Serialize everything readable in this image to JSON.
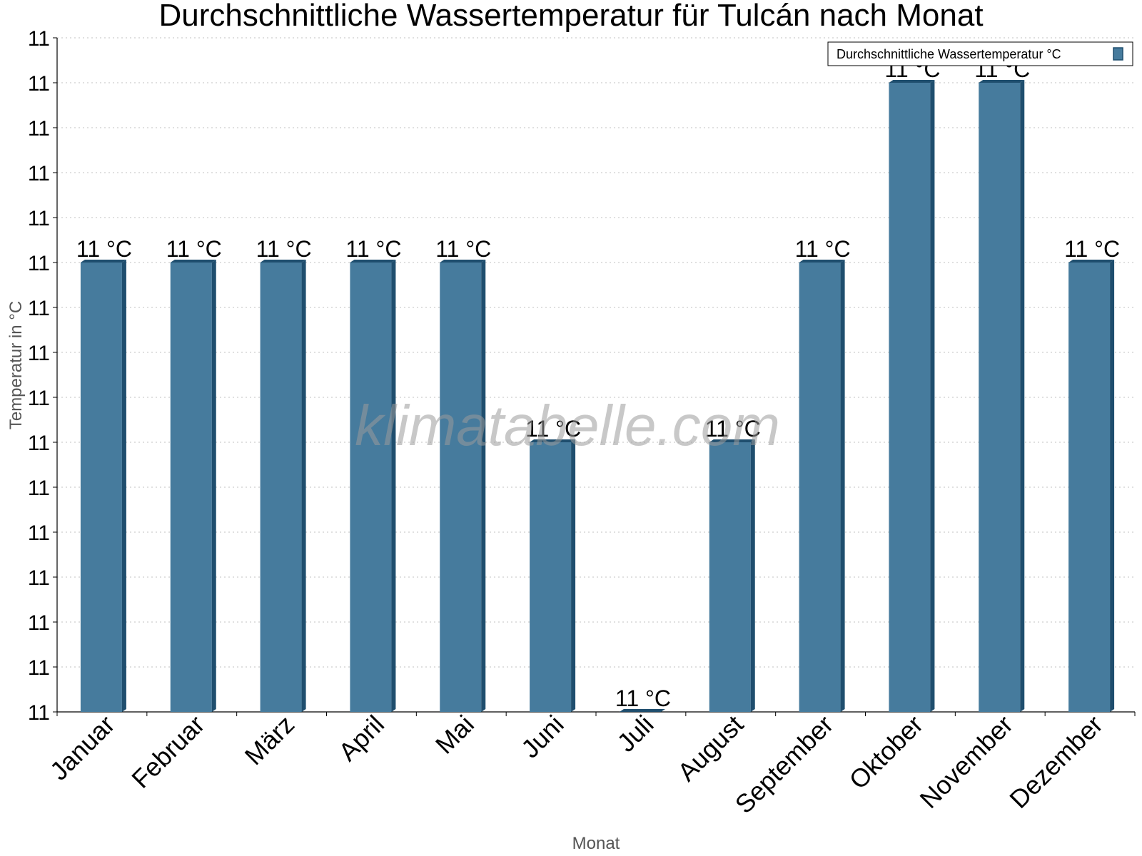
{
  "chart_data": {
    "type": "bar",
    "title": "Durchschnittliche Wassertemperatur für Tulcán nach Monat",
    "xlabel": "Monat",
    "ylabel": "Temperatur in °C",
    "categories": [
      "Januar",
      "Februar",
      "März",
      "April",
      "Mai",
      "Juni",
      "Juli",
      "August",
      "September",
      "Oktober",
      "November",
      "Dezember"
    ],
    "series": [
      {
        "name": "Durchschnittliche Wassertemperatur °C",
        "values": [
          10.95,
          10.95,
          10.95,
          10.95,
          10.95,
          10.91,
          10.85,
          10.91,
          10.95,
          10.99,
          10.99,
          10.95
        ],
        "labels": [
          "11 °C",
          "11 °C",
          "11 °C",
          "11 °C",
          "11 °C",
          "11 °C",
          "11 °C",
          "11 °C",
          "11 °C",
          "11 °C",
          "11 °C",
          "11 °C"
        ],
        "color": "#467b9d",
        "side_color": "#1f4e6e"
      }
    ],
    "ylim": [
      10.85,
      11.0
    ],
    "yticks": [
      10.85,
      10.86,
      10.87,
      10.88,
      10.89,
      10.9,
      10.91,
      10.92,
      10.93,
      10.94,
      10.95,
      10.96,
      10.97,
      10.98,
      10.99,
      11.0
    ],
    "ytick_labels": [
      "11",
      "11",
      "11",
      "11",
      "11",
      "11",
      "11",
      "11",
      "11",
      "11",
      "11",
      "11",
      "11",
      "11",
      "11",
      "11"
    ],
    "grid": true,
    "legend_position": "top-right",
    "watermark": "klimatabelle.com"
  }
}
